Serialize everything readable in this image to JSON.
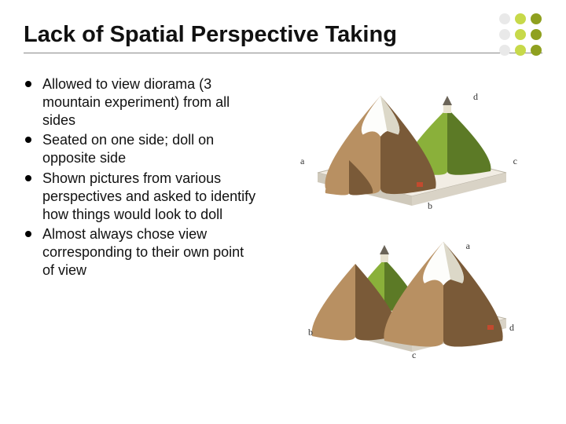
{
  "title": "Lack of Spatial Perspective Taking",
  "bullets": [
    "Allowed to view diorama (3 mountain experiment) from all sides",
    "Seated on one side; doll on opposite side",
    "Shown pictures from various perspectives and asked to identify how things would look to doll",
    "Almost always chose view corresponding to their own point of view"
  ],
  "dot_colors": {
    "col1": "#e9e9e9",
    "col2": "#c7d94a",
    "col3": "#8fa01f"
  },
  "diorama_colors": {
    "platform_top": "#f2ede4",
    "platform_side": "#d9d3c6",
    "platform_front": "#cfc9bb",
    "grass_light": "#8ab03a",
    "grass_dark": "#5c7a26",
    "rock_light": "#b89062",
    "rock_dark": "#7a5a38",
    "snow": "#fdfdfb",
    "snow_shadow": "#dcd8c8",
    "church_body": "#e8e2d0",
    "church_roof": "#6b6458",
    "house": "#c24a2e"
  },
  "labels": {
    "top": {
      "a": "a",
      "b": "b",
      "c": "c",
      "d": "d"
    },
    "bottom": {
      "a": "a",
      "b": "b",
      "c": "c",
      "d": "d"
    }
  }
}
